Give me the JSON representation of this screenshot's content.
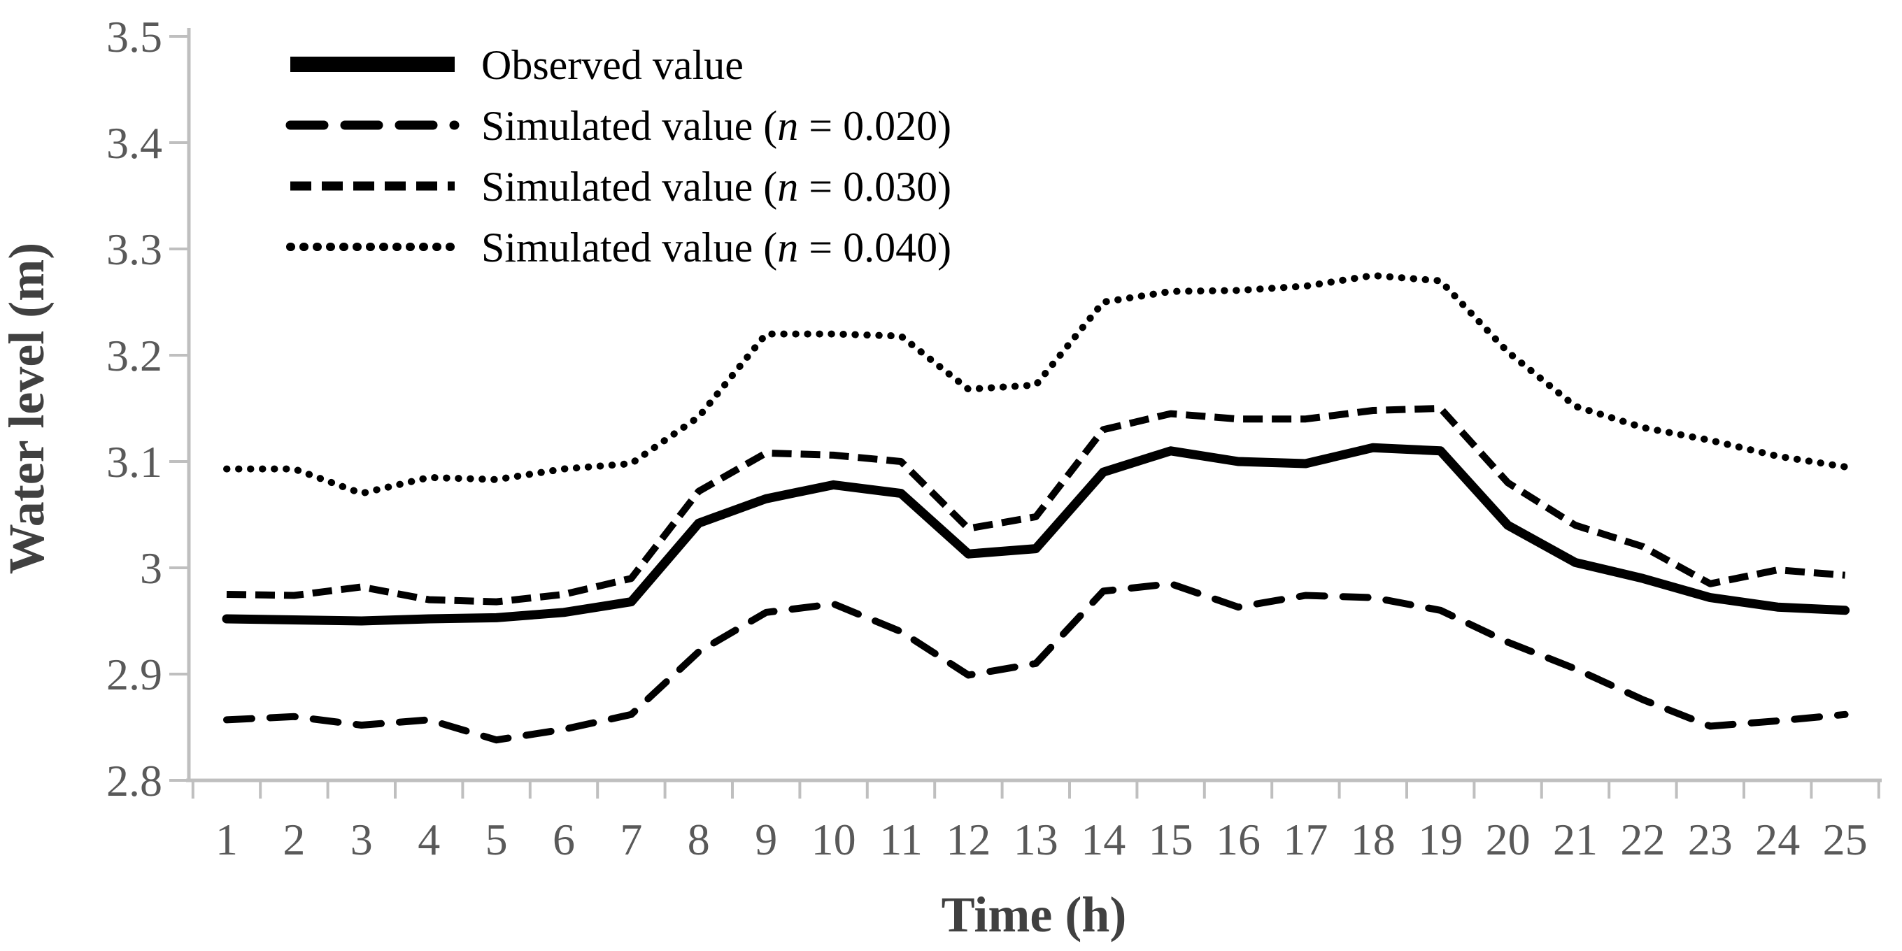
{
  "figure": {
    "background": "#ffffff",
    "axis_color": "#bfbfbf",
    "tick_label_color": "#595959",
    "line_color": "#000000",
    "y_axis": {
      "title": "Water level (m)"
    },
    "x_axis": {
      "title": "Time (h)"
    }
  },
  "legend": {
    "position": "top-left",
    "items": [
      {
        "before": "Observed value",
        "n": "",
        "after": "",
        "style": "solid"
      },
      {
        "before": "Simulated value (",
        "n": "n",
        "after": " = 0.020)",
        "style": "long-dash"
      },
      {
        "before": "Simulated value (",
        "n": "n",
        "after": " = 0.030)",
        "style": "medium-dash"
      },
      {
        "before": "Simulated value (",
        "n": "n",
        "after": " = 0.040)",
        "style": "dotted"
      }
    ]
  },
  "chart_data": {
    "type": "line",
    "title": "",
    "xlabel": "Time (h)",
    "ylabel": "Water level (m)",
    "grid": false,
    "legend_position": "top-left",
    "ylim": [
      2.8,
      3.5
    ],
    "yticks": [
      {
        "label": "3.5",
        "value": 3.5
      },
      {
        "label": "3.4",
        "value": 3.4
      },
      {
        "label": "3.3",
        "value": 3.3
      },
      {
        "label": "3.2",
        "value": 3.2
      },
      {
        "label": "3.1",
        "value": 3.1
      },
      {
        "label": "3",
        "value": 3.0
      },
      {
        "label": "2.9",
        "value": 2.9
      },
      {
        "label": "2.8",
        "value": 2.8
      }
    ],
    "x": [
      1,
      2,
      3,
      4,
      5,
      6,
      7,
      8,
      9,
      10,
      11,
      12,
      13,
      14,
      15,
      16,
      17,
      18,
      19,
      20,
      21,
      22,
      23,
      24,
      25
    ],
    "series": [
      {
        "id": "observed",
        "name": "Observed value",
        "style": "solid",
        "values": [
          2.952,
          2.951,
          2.95,
          2.952,
          2.953,
          2.958,
          2.968,
          3.042,
          3.065,
          3.078,
          3.07,
          3.013,
          3.018,
          3.09,
          3.11,
          3.1,
          3.098,
          3.113,
          3.11,
          3.04,
          3.005,
          2.99,
          2.972,
          2.963,
          2.96
        ]
      },
      {
        "id": "simulated-n-0020",
        "name": "Simulated value (n = 0.020)",
        "style": "long-dash",
        "values": [
          2.857,
          2.86,
          2.852,
          2.857,
          2.838,
          2.848,
          2.862,
          2.921,
          2.958,
          2.966,
          2.94,
          2.899,
          2.91,
          2.978,
          2.985,
          2.963,
          2.974,
          2.972,
          2.96,
          2.93,
          2.905,
          2.876,
          2.851,
          2.856,
          2.862
        ]
      },
      {
        "id": "simulated-n-0030",
        "name": "Simulated value (n = 0.030)",
        "style": "medium-dash",
        "values": [
          2.975,
          2.974,
          2.982,
          2.97,
          2.968,
          2.975,
          2.99,
          3.072,
          3.108,
          3.106,
          3.1,
          3.037,
          3.048,
          3.13,
          3.145,
          3.14,
          3.14,
          3.148,
          3.15,
          3.08,
          3.04,
          3.02,
          2.985,
          2.998,
          2.993
        ]
      },
      {
        "id": "simulated-n-0040",
        "name": "Simulated value (n = 0.040)",
        "style": "dotted",
        "values": [
          3.093,
          3.093,
          3.07,
          3.085,
          3.083,
          3.093,
          3.098,
          3.142,
          3.22,
          3.22,
          3.218,
          3.168,
          3.172,
          3.25,
          3.26,
          3.261,
          3.265,
          3.275,
          3.27,
          3.203,
          3.152,
          3.132,
          3.12,
          3.105,
          3.095
        ]
      }
    ]
  }
}
